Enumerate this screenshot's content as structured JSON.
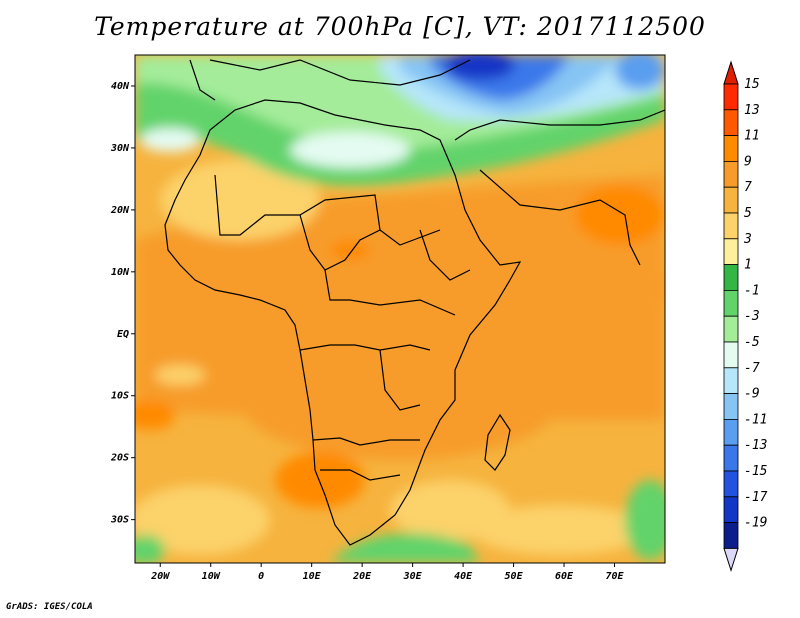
{
  "title": "Temperature at 700hPa [C], VT: 2017112500",
  "credit": "GrADS: IGES/COLA",
  "map": {
    "lon_range": [
      -25,
      80
    ],
    "lat_range": [
      -37,
      45
    ],
    "lat_ticks": [
      {
        "value": 40,
        "label": "40N"
      },
      {
        "value": 30,
        "label": "30N"
      },
      {
        "value": 20,
        "label": "20N"
      },
      {
        "value": 10,
        "label": "10N"
      },
      {
        "value": 0,
        "label": "EQ"
      },
      {
        "value": -10,
        "label": "10S"
      },
      {
        "value": -20,
        "label": "20S"
      },
      {
        "value": -30,
        "label": "30S"
      }
    ],
    "lon_ticks": [
      {
        "value": -20,
        "label": "20W"
      },
      {
        "value": -10,
        "label": "10W"
      },
      {
        "value": 0,
        "label": "0"
      },
      {
        "value": 10,
        "label": "10E"
      },
      {
        "value": 20,
        "label": "20E"
      },
      {
        "value": 30,
        "label": "30E"
      },
      {
        "value": 40,
        "label": "40E"
      },
      {
        "value": 50,
        "label": "50E"
      },
      {
        "value": 60,
        "label": "60E"
      },
      {
        "value": 70,
        "label": "70E"
      }
    ]
  },
  "colorbar": {
    "levels": [
      {
        "label": "15",
        "color": "#ff2a00"
      },
      {
        "label": "13",
        "color": "#ff5a00"
      },
      {
        "label": "11",
        "color": "#ff8a00"
      },
      {
        "label": "9",
        "color": "#f79c2a"
      },
      {
        "label": "7",
        "color": "#f6b33e"
      },
      {
        "label": "5",
        "color": "#fcd26a"
      },
      {
        "label": "3",
        "color": "#fef09a"
      },
      {
        "label": "1",
        "color": "#34b644"
      },
      {
        "label": "-1",
        "color": "#62d36a"
      },
      {
        "label": "-3",
        "color": "#a4ec9a"
      },
      {
        "label": "-5",
        "color": "#e4fbf2"
      },
      {
        "label": "-7",
        "color": "#b6e6fa"
      },
      {
        "label": "-9",
        "color": "#86c4f4"
      },
      {
        "label": "-11",
        "color": "#5a9ef0"
      },
      {
        "label": "-13",
        "color": "#3a78ea"
      },
      {
        "label": "-15",
        "color": "#2252e0"
      },
      {
        "label": "-17",
        "color": "#1236c6"
      },
      {
        "label": "-19",
        "color": "#0c1e8c"
      }
    ],
    "top_arrow_color": "#e01e00",
    "bottom_arrow_color": "#dcd8f8"
  }
}
